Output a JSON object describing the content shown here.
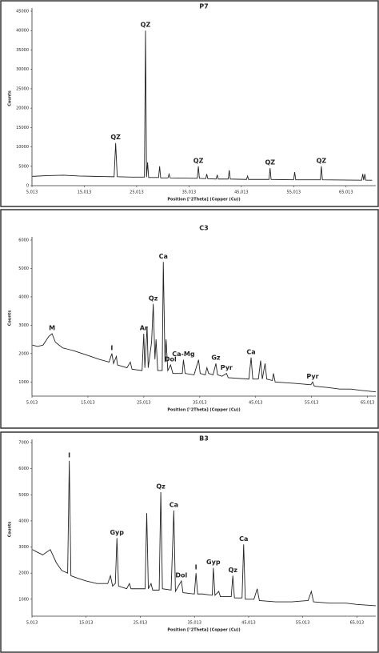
{
  "chart_data": [
    {
      "type": "line",
      "title": "P7",
      "x_label": "Position [°2Theta] (Copper (Cu))",
      "y_label": "Counts",
      "color": "#222222",
      "xlim": [
        5.013,
        70.7
      ],
      "ylim": [
        0,
        45000
      ],
      "xticks": [
        {
          "value": 5.013,
          "label": "5,013"
        },
        {
          "value": 15.013,
          "label": "15,013"
        },
        {
          "value": 25.013,
          "label": "25,013"
        },
        {
          "value": 35.013,
          "label": "35,013"
        },
        {
          "value": 45.013,
          "label": "45,013"
        },
        {
          "value": 55.013,
          "label": "55,013"
        },
        {
          "value": 65.013,
          "label": "65,013"
        }
      ],
      "yticks": [
        0,
        5000,
        10000,
        15000,
        20000,
        25000,
        30000,
        35000,
        40000,
        45000
      ],
      "x": [
        5.1,
        8,
        11,
        14,
        17,
        20.7,
        21.0,
        21.3,
        24,
        26.5,
        26.7,
        26.9,
        27.1,
        27.3,
        29.2,
        29.4,
        29.6,
        31.0,
        31.2,
        31.4,
        36.6,
        36.8,
        37.0,
        38.2,
        38.4,
        38.6,
        40.2,
        40.4,
        40.6,
        42.5,
        42.7,
        42.9,
        46,
        46.2,
        46.4,
        50.3,
        50.5,
        50.7,
        55.0,
        55.2,
        55.4,
        60.1,
        60.3,
        60.5,
        68.0,
        68.2,
        68.4,
        68.6,
        68.8,
        70
      ],
      "values": [
        2400,
        2600,
        2700,
        2500,
        2400,
        2300,
        11000,
        2300,
        2200,
        2200,
        40000,
        2200,
        6000,
        2100,
        2100,
        5000,
        2000,
        2000,
        3000,
        2000,
        1900,
        5000,
        1900,
        1800,
        3000,
        1800,
        1700,
        2800,
        1700,
        1700,
        4000,
        1700,
        1600,
        2500,
        1600,
        1600,
        4500,
        1600,
        1500,
        3500,
        1500,
        1500,
        5000,
        1500,
        1400,
        3000,
        1400,
        3000,
        1400,
        1400
      ],
      "annotations": [
        {
          "text": "QZ",
          "x": 21.0,
          "y": 11000
        },
        {
          "text": "QZ",
          "x": 26.7,
          "y": 40000
        },
        {
          "text": "QZ",
          "x": 36.8,
          "y": 5000
        },
        {
          "text": "QZ",
          "x": 50.5,
          "y": 4500
        },
        {
          "text": "QZ",
          "x": 60.3,
          "y": 5000
        }
      ]
    },
    {
      "type": "line",
      "title": "C3",
      "x_label": "Position [°2Theta] (Copper (Cu))",
      "y_label": "Counts",
      "color": "#222222",
      "xlim": [
        5.013,
        66.5
      ],
      "ylim": [
        500,
        6000
      ],
      "xticks": [
        {
          "value": 5.013,
          "label": "5,013"
        },
        {
          "value": 15.013,
          "label": "15,013"
        },
        {
          "value": 25.013,
          "label": "25,013"
        },
        {
          "value": 35.013,
          "label": "35,013"
        },
        {
          "value": 45.013,
          "label": "45,013"
        },
        {
          "value": 55.013,
          "label": "55,013"
        },
        {
          "value": 65.013,
          "label": "65,013"
        }
      ],
      "yticks": [
        1000,
        2000,
        3000,
        4000,
        5000,
        6000
      ],
      "x": [
        5.1,
        6,
        7,
        8,
        8.6,
        9.2,
        10.5,
        11.5,
        12.5,
        14,
        15.5,
        17,
        18.8,
        19.3,
        19.6,
        20.1,
        20.3,
        22,
        22.6,
        22.9,
        24.7,
        25.0,
        25.2,
        25.6,
        25.8,
        26.4,
        26.7,
        27.0,
        27.2,
        27.5,
        28.3,
        28.5,
        28.8,
        29.0,
        29.3,
        29.8,
        30.2,
        31.9,
        32.1,
        32.4,
        34.0,
        34.8,
        35.1,
        36.0,
        36.3,
        36.6,
        37.4,
        37.9,
        38.2,
        39.0,
        39.8,
        40.1,
        43.8,
        44.2,
        44.5,
        45.5,
        45.9,
        46.2,
        46.7,
        47.0,
        48.0,
        48.2,
        48.5,
        52,
        54.9,
        55.2,
        55.5,
        58,
        60,
        62,
        64,
        66.5
      ],
      "values": [
        2300,
        2250,
        2300,
        2600,
        2700,
        2400,
        2200,
        2150,
        2100,
        2000,
        1900,
        1800,
        1700,
        2000,
        1650,
        1900,
        1600,
        1500,
        1700,
        1450,
        1400,
        2700,
        1500,
        2950,
        1500,
        2400,
        3750,
        1800,
        2500,
        1400,
        1400,
        5230,
        1700,
        2500,
        1400,
        1600,
        1300,
        1300,
        1780,
        1300,
        1250,
        1780,
        1300,
        1250,
        1500,
        1300,
        1250,
        1650,
        1250,
        1200,
        1300,
        1150,
        1100,
        1860,
        1100,
        1100,
        1750,
        1100,
        1650,
        1100,
        1050,
        1300,
        1000,
        950,
        900,
        1000,
        850,
        800,
        750,
        750,
        700,
        650
      ],
      "annotations": [
        {
          "text": "M",
          "x": 8.6,
          "y": 2700
        },
        {
          "text": "I",
          "x": 19.3,
          "y": 2000
        },
        {
          "text": "Ar",
          "x": 25.0,
          "y": 2700
        },
        {
          "text": "Qz",
          "x": 26.7,
          "y": 3750
        },
        {
          "text": "Ca",
          "x": 28.5,
          "y": 5230
        },
        {
          "text": "Dol",
          "x": 29.8,
          "y": 1600
        },
        {
          "text": "Ca-Mg",
          "x": 32.1,
          "y": 1780
        },
        {
          "text": "Gz",
          "x": 37.9,
          "y": 1650
        },
        {
          "text": "Pyr",
          "x": 39.8,
          "y": 1300
        },
        {
          "text": "Ca",
          "x": 44.2,
          "y": 1860
        },
        {
          "text": "Pyr",
          "x": 55.2,
          "y": 1000
        }
      ]
    },
    {
      "type": "line",
      "title": "B3",
      "x_label": "Position [°2Theta] (Copper (Cu))",
      "y_label": "Counts",
      "color": "#222222",
      "xlim": [
        5.013,
        68.5
      ],
      "ylim": [
        350,
        7000
      ],
      "xticks": [
        {
          "value": 5.013,
          "label": "5,013"
        },
        {
          "value": 15.013,
          "label": "15,013"
        },
        {
          "value": 25.013,
          "label": "25,013"
        },
        {
          "value": 35.013,
          "label": "35,013"
        },
        {
          "value": 45.013,
          "label": "45,013"
        },
        {
          "value": 55.013,
          "label": "55,013"
        },
        {
          "value": 65.013,
          "label": "65,013"
        }
      ],
      "yticks": [
        1000,
        2000,
        3000,
        4000,
        5000,
        6000,
        7000
      ],
      "x": [
        5.1,
        6,
        7,
        8.4,
        9.5,
        10.5,
        11.6,
        11.9,
        12.2,
        13.5,
        15,
        17,
        19,
        19.5,
        19.9,
        20.4,
        20.7,
        21.0,
        22.5,
        23,
        23.3,
        25.9,
        26.2,
        26.5,
        27,
        27.3,
        28.5,
        28.8,
        29.1,
        30.7,
        31.2,
        31.5,
        32.6,
        32.9,
        35.0,
        35.3,
        35.6,
        36.5,
        38.3,
        38.5,
        38.8,
        39.5,
        39.8,
        41.8,
        42.1,
        42.4,
        43.8,
        44.1,
        44.4,
        46,
        46.6,
        47,
        50,
        53,
        56,
        56.6,
        57,
        60,
        63,
        65,
        68.5
      ],
      "values": [
        2900,
        2800,
        2700,
        2900,
        2400,
        2100,
        2000,
        6300,
        1900,
        1800,
        1700,
        1600,
        1600,
        1900,
        1500,
        1600,
        3340,
        1500,
        1400,
        1600,
        1400,
        1400,
        4300,
        1400,
        1600,
        1350,
        1350,
        5100,
        1400,
        1350,
        4400,
        1300,
        1700,
        1250,
        1200,
        2000,
        1200,
        1200,
        1150,
        2200,
        1150,
        1300,
        1100,
        1100,
        1900,
        1050,
        1050,
        3100,
        1000,
        1000,
        1400,
        950,
        900,
        900,
        950,
        1300,
        900,
        850,
        850,
        800,
        750
      ],
      "annotations": [
        {
          "text": "I",
          "x": 11.9,
          "y": 6300
        },
        {
          "text": "Gyp",
          "x": 20.7,
          "y": 3340
        },
        {
          "text": "Qz",
          "x": 28.8,
          "y": 5100
        },
        {
          "text": "Ca",
          "x": 31.2,
          "y": 4400
        },
        {
          "text": "Dol",
          "x": 32.6,
          "y": 1700
        },
        {
          "text": "I",
          "x": 35.3,
          "y": 2000
        },
        {
          "text": "Gyp",
          "x": 38.5,
          "y": 2200
        },
        {
          "text": "Qz",
          "x": 42.1,
          "y": 1900
        },
        {
          "text": "Ca",
          "x": 44.1,
          "y": 3100
        }
      ]
    }
  ]
}
